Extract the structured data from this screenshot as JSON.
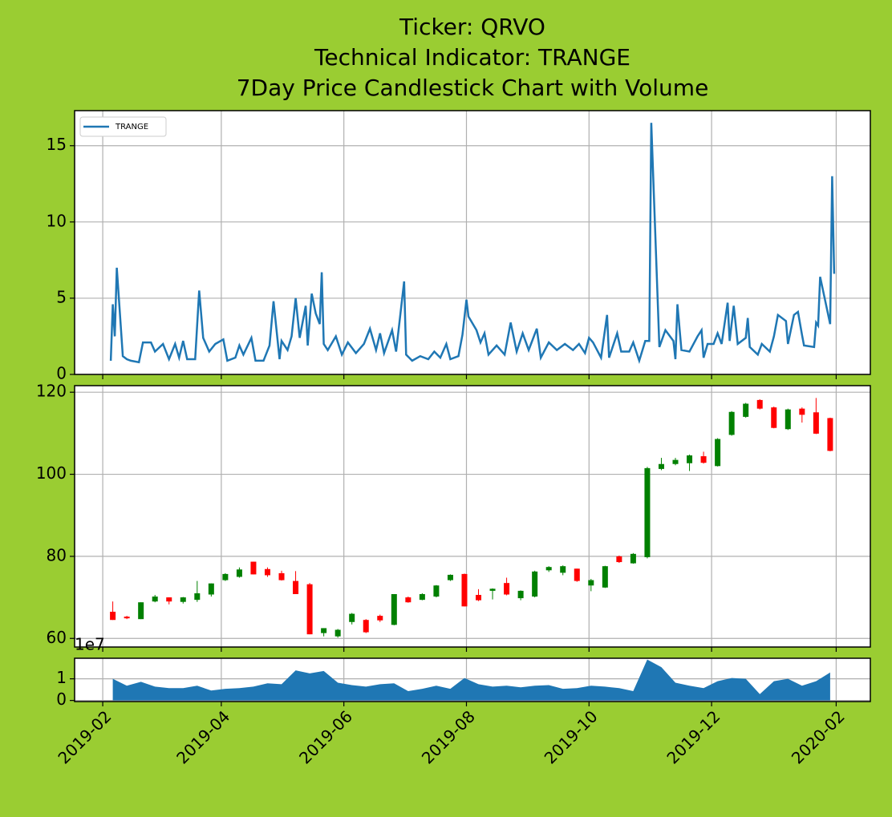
{
  "chart_data": [
    {
      "type": "line",
      "title": [
        "Ticker: QRVO",
        "Technical Indicator: TRANGE",
        "7Day Price Candlestick Chart with Volume"
      ],
      "x": [
        "2019-02-05",
        "2019-02-06",
        "2019-02-07",
        "2019-02-08",
        "2019-02-11",
        "2019-02-13",
        "2019-02-15",
        "2019-02-19",
        "2019-02-21",
        "2019-02-25",
        "2019-02-27",
        "2019-03-03",
        "2019-03-06",
        "2019-03-09",
        "2019-03-11",
        "2019-03-13",
        "2019-03-15",
        "2019-03-19",
        "2019-03-21",
        "2019-03-23",
        "2019-03-26",
        "2019-03-29",
        "2019-04-02",
        "2019-04-04",
        "2019-04-08",
        "2019-04-10",
        "2019-04-12",
        "2019-04-16",
        "2019-04-18",
        "2019-04-22",
        "2019-04-25",
        "2019-04-27",
        "2019-04-30",
        "2019-05-01",
        "2019-05-04",
        "2019-05-06",
        "2019-05-08",
        "2019-05-10",
        "2019-05-13",
        "2019-05-14",
        "2019-05-16",
        "2019-05-18",
        "2019-05-20",
        "2019-05-21",
        "2019-05-22",
        "2019-05-24",
        "2019-05-28",
        "2019-05-31",
        "2019-06-03",
        "2019-06-07",
        "2019-06-11",
        "2019-06-14",
        "2019-06-17",
        "2019-06-19",
        "2019-06-21",
        "2019-06-25",
        "2019-06-27",
        "2019-07-01",
        "2019-07-02",
        "2019-07-05",
        "2019-07-09",
        "2019-07-13",
        "2019-07-16",
        "2019-07-19",
        "2019-07-22",
        "2019-07-24",
        "2019-07-28",
        "2019-07-30",
        "2019-08-01",
        "2019-08-02",
        "2019-08-06",
        "2019-08-08",
        "2019-08-10",
        "2019-08-12",
        "2019-08-16",
        "2019-08-20",
        "2019-08-23",
        "2019-08-26",
        "2019-08-29",
        "2019-09-01",
        "2019-09-05",
        "2019-09-07",
        "2019-09-11",
        "2019-09-15",
        "2019-09-19",
        "2019-09-23",
        "2019-09-26",
        "2019-09-29",
        "2019-10-01",
        "2019-10-03",
        "2019-10-07",
        "2019-10-10",
        "2019-10-11",
        "2019-10-15",
        "2019-10-17",
        "2019-10-21",
        "2019-10-23",
        "2019-10-26",
        "2019-10-29",
        "2019-10-31",
        "2019-11-01",
        "2019-11-05",
        "2019-11-08",
        "2019-11-12",
        "2019-11-13",
        "2019-11-14",
        "2019-11-16",
        "2019-11-20",
        "2019-11-24",
        "2019-11-26",
        "2019-11-27",
        "2019-11-29",
        "2019-12-02",
        "2019-12-04",
        "2019-12-06",
        "2019-12-09",
        "2019-12-10",
        "2019-12-12",
        "2019-12-14",
        "2019-12-18",
        "2019-12-19",
        "2019-12-20",
        "2019-12-24",
        "2019-12-26",
        "2019-12-30",
        "2020-01-01",
        "2020-01-03",
        "2020-01-07",
        "2020-01-08",
        "2020-01-11",
        "2020-01-13",
        "2020-01-15",
        "2020-01-16",
        "2020-01-21",
        "2020-01-22",
        "2020-01-23",
        "2020-01-24",
        "2020-01-29",
        "2020-01-30",
        "2020-01-31"
      ],
      "series": [
        {
          "name": "TRANGE",
          "color": "#1f77b4",
          "values": [
            0.9,
            4.6,
            2.5,
            7.0,
            1.2,
            1.0,
            0.9,
            0.8,
            2.1,
            2.1,
            1.5,
            2.0,
            1.0,
            2.0,
            1.1,
            2.2,
            1.0,
            1.0,
            5.5,
            2.4,
            1.5,
            2.0,
            2.3,
            0.9,
            1.1,
            1.9,
            1.3,
            2.4,
            0.9,
            0.9,
            1.9,
            4.8,
            1.0,
            2.2,
            1.6,
            2.5,
            5.0,
            2.4,
            4.5,
            1.9,
            5.3,
            4.0,
            3.3,
            6.7,
            2.0,
            1.6,
            2.5,
            1.3,
            2.1,
            1.4,
            2.0,
            3.0,
            1.6,
            2.7,
            1.4,
            2.9,
            1.5,
            6.1,
            1.3,
            0.9,
            1.2,
            1.0,
            1.5,
            1.1,
            2.0,
            1.0,
            1.2,
            2.6,
            4.9,
            3.8,
            2.9,
            2.1,
            2.7,
            1.3,
            1.9,
            1.3,
            3.4,
            1.5,
            2.7,
            1.6,
            3.0,
            1.1,
            2.1,
            1.6,
            2.0,
            1.6,
            2.0,
            1.4,
            2.4,
            2.1,
            1.1,
            3.9,
            1.1,
            2.7,
            1.5,
            1.5,
            2.1,
            0.9,
            2.2,
            2.2,
            16.5,
            1.8,
            2.9,
            2.2,
            1.0,
            4.6,
            1.6,
            1.5,
            2.5,
            2.9,
            1.1,
            2.0,
            2.0,
            2.7,
            2.0,
            4.7,
            2.2,
            4.5,
            2.0,
            2.4,
            3.7,
            1.8,
            1.3,
            2.0,
            1.5,
            2.5,
            3.9,
            3.5,
            2.0,
            3.9,
            4.1,
            2.6,
            1.9,
            1.8,
            3.4,
            3.2,
            6.4,
            3.3,
            13.0,
            6.6
          ]
        }
      ],
      "ylim": [
        0,
        17.3
      ],
      "yticks": [
        0,
        5,
        10,
        15
      ],
      "grid": true,
      "legend": "upper left"
    },
    {
      "type": "candlestick",
      "x": [
        "2019-02-06",
        "2019-02-13",
        "2019-02-20",
        "2019-02-27",
        "2019-03-06",
        "2019-03-13",
        "2019-03-20",
        "2019-03-27",
        "2019-04-03",
        "2019-04-10",
        "2019-04-17",
        "2019-04-24",
        "2019-05-01",
        "2019-05-08",
        "2019-05-15",
        "2019-05-22",
        "2019-05-29",
        "2019-06-05",
        "2019-06-12",
        "2019-06-19",
        "2019-06-26",
        "2019-07-03",
        "2019-07-10",
        "2019-07-17",
        "2019-07-24",
        "2019-07-31",
        "2019-08-07",
        "2019-08-14",
        "2019-08-21",
        "2019-08-28",
        "2019-09-04",
        "2019-09-11",
        "2019-09-18",
        "2019-09-25",
        "2019-10-02",
        "2019-10-09",
        "2019-10-16",
        "2019-10-23",
        "2019-10-30",
        "2019-11-06",
        "2019-11-13",
        "2019-11-20",
        "2019-11-27",
        "2019-12-04",
        "2019-12-11",
        "2019-12-18",
        "2019-12-25",
        "2020-01-01",
        "2020-01-08",
        "2020-01-15",
        "2020-01-22",
        "2020-01-29"
      ],
      "open": [
        66.5,
        65.3,
        64.7,
        69.0,
        70.0,
        68.9,
        69.4,
        70.7,
        74.2,
        75.0,
        78.7,
        76.9,
        75.9,
        74.0,
        73.2,
        61.3,
        60.5,
        64.0,
        64.5,
        65.5,
        63.3,
        70.0,
        69.4,
        70.2,
        74.2,
        75.7,
        70.6,
        71.6,
        73.5,
        69.8,
        70.2,
        76.6,
        76.0,
        77.0,
        72.9,
        72.4,
        80.0,
        78.3,
        79.8,
        101.3,
        102.5,
        102.7,
        104.4,
        102.0,
        109.6,
        114.0,
        118.1,
        116.3,
        111.0,
        116.0,
        115.1,
        113.7
      ],
      "high": [
        69.0,
        65.5,
        68.8,
        70.6,
        70.0,
        70.1,
        74.0,
        73.4,
        75.9,
        77.3,
        78.7,
        77.3,
        76.5,
        76.4,
        73.5,
        62.5,
        62.3,
        66.2,
        64.7,
        65.8,
        70.8,
        70.2,
        71.0,
        73.0,
        75.6,
        75.8,
        72.0,
        72.2,
        74.8,
        71.7,
        76.5,
        77.6,
        77.8,
        77.0,
        74.5,
        77.7,
        80.2,
        80.8,
        101.8,
        104.0,
        104.0,
        104.8,
        105.5,
        108.8,
        115.4,
        117.4,
        118.3,
        116.5,
        116.0,
        116.3,
        118.6,
        113.8
      ],
      "low": [
        64.5,
        64.7,
        64.7,
        68.8,
        68.3,
        68.5,
        68.9,
        70.2,
        74.0,
        74.8,
        75.6,
        75.0,
        74.1,
        70.8,
        61.0,
        60.5,
        60.2,
        63.4,
        61.3,
        64.0,
        63.2,
        68.7,
        69.3,
        70.0,
        74.0,
        67.8,
        69.1,
        69.5,
        70.5,
        69.3,
        70.0,
        76.2,
        75.4,
        73.8,
        71.5,
        72.3,
        78.4,
        78.2,
        79.5,
        101.0,
        102.2,
        100.8,
        102.6,
        101.9,
        109.4,
        113.8,
        115.8,
        111.2,
        110.8,
        112.6,
        109.8,
        105.6
      ],
      "close": [
        64.5,
        64.9,
        68.8,
        70.2,
        69.0,
        70.0,
        71.0,
        73.4,
        75.7,
        76.8,
        75.6,
        75.4,
        74.2,
        70.8,
        61.0,
        62.5,
        62.1,
        66.0,
        61.5,
        64.4,
        70.8,
        68.8,
        70.8,
        72.9,
        75.5,
        67.8,
        69.3,
        72.1,
        70.7,
        71.6,
        76.3,
        77.4,
        77.6,
        74.0,
        74.2,
        77.6,
        78.6,
        80.6,
        101.5,
        102.5,
        103.5,
        104.6,
        102.8,
        108.6,
        115.2,
        117.2,
        116.0,
        111.3,
        115.8,
        114.5,
        109.9,
        105.7
      ],
      "up_color": "#008000",
      "down_color": "#ff0000",
      "ylim": [
        57.9,
        121.6
      ],
      "yticks": [
        60,
        80,
        100,
        120
      ],
      "grid": true
    },
    {
      "type": "area",
      "x": [
        "2019-02-06",
        "2019-02-13",
        "2019-02-20",
        "2019-02-27",
        "2019-03-06",
        "2019-03-13",
        "2019-03-20",
        "2019-03-27",
        "2019-04-03",
        "2019-04-10",
        "2019-04-17",
        "2019-04-24",
        "2019-05-01",
        "2019-05-08",
        "2019-05-15",
        "2019-05-22",
        "2019-05-29",
        "2019-06-05",
        "2019-06-12",
        "2019-06-19",
        "2019-06-26",
        "2019-07-03",
        "2019-07-10",
        "2019-07-17",
        "2019-07-24",
        "2019-07-31",
        "2019-08-07",
        "2019-08-14",
        "2019-08-21",
        "2019-08-28",
        "2019-09-04",
        "2019-09-11",
        "2019-09-18",
        "2019-09-25",
        "2019-10-02",
        "2019-10-09",
        "2019-10-16",
        "2019-10-23",
        "2019-10-30",
        "2019-11-06",
        "2019-11-13",
        "2019-11-20",
        "2019-11-27",
        "2019-12-04",
        "2019-12-11",
        "2019-12-18",
        "2019-12-25",
        "2020-01-01",
        "2020-01-08",
        "2020-01-15",
        "2020-01-22",
        "2020-01-29"
      ],
      "values": [
        1.0,
        0.68,
        0.86,
        0.64,
        0.57,
        0.57,
        0.68,
        0.46,
        0.54,
        0.57,
        0.64,
        0.79,
        0.75,
        1.39,
        1.25,
        1.36,
        0.82,
        0.71,
        0.64,
        0.75,
        0.79,
        0.43,
        0.54,
        0.68,
        0.54,
        1.04,
        0.75,
        0.64,
        0.68,
        0.61,
        0.68,
        0.71,
        0.54,
        0.57,
        0.68,
        0.64,
        0.57,
        0.43,
        1.89,
        1.54,
        0.82,
        0.68,
        0.57,
        0.89,
        1.04,
        1.0,
        0.29,
        0.89,
        1.0,
        0.68,
        0.89,
        1.29
      ],
      "color": "#1f77b4",
      "ylim": [
        -0.05,
        1.95
      ],
      "yticks": [
        0,
        1
      ],
      "y_offset_label": "1e7",
      "xlim": [
        "2019-01-18",
        "2020-02-18"
      ],
      "xticks": [
        "2019-02",
        "2019-04",
        "2019-06",
        "2019-08",
        "2019-10",
        "2019-12",
        "2020-02"
      ],
      "grid": true
    }
  ]
}
